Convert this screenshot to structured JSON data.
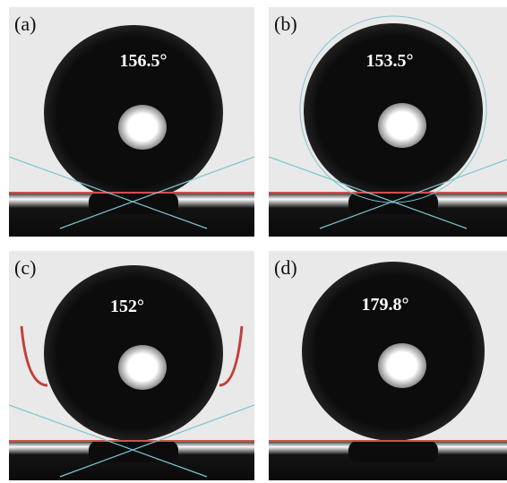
{
  "panels": [
    {
      "label": "(a)",
      "angle": "156.5°"
    },
    {
      "label": "(b)",
      "angle": "153.5°"
    },
    {
      "label": "(c)",
      "angle": "152°"
    },
    {
      "label": "(d)",
      "angle": "179.8°"
    }
  ]
}
